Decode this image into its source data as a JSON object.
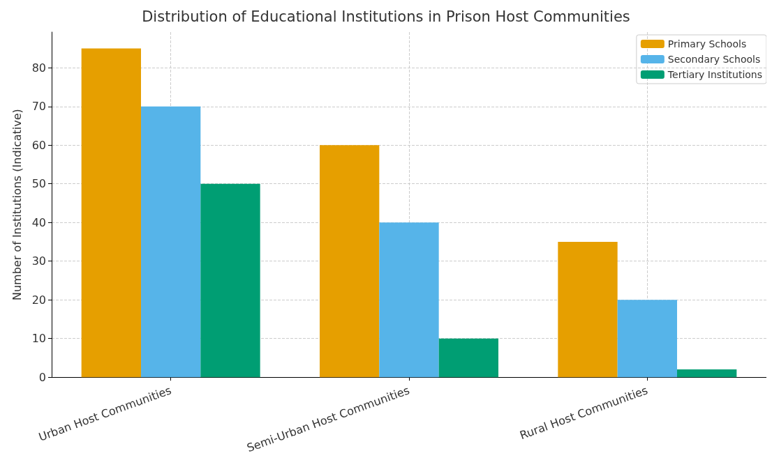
{
  "chart_data": {
    "type": "bar",
    "title": "Distribution of Educational Institutions in Prison Host Communities",
    "ylabel": "Number of Institutions (Indicative)",
    "categories": [
      "Urban Host Communities",
      "Semi-Urban Host Communities",
      "Rural Host Communities"
    ],
    "series": [
      {
        "name": "Primary Schools",
        "color": "#e69f00",
        "values": [
          85,
          60,
          35
        ]
      },
      {
        "name": "Secondary Schools",
        "color": "#56b4e9",
        "values": [
          70,
          40,
          20
        ]
      },
      {
        "name": "Tertiary Institutions",
        "color": "#009e73",
        "values": [
          50,
          10,
          2
        ]
      }
    ],
    "ylim": [
      0,
      89.25
    ],
    "yticks": [
      0,
      10,
      20,
      30,
      40,
      50,
      60,
      70,
      80
    ],
    "grid": true,
    "legend": "top right"
  }
}
